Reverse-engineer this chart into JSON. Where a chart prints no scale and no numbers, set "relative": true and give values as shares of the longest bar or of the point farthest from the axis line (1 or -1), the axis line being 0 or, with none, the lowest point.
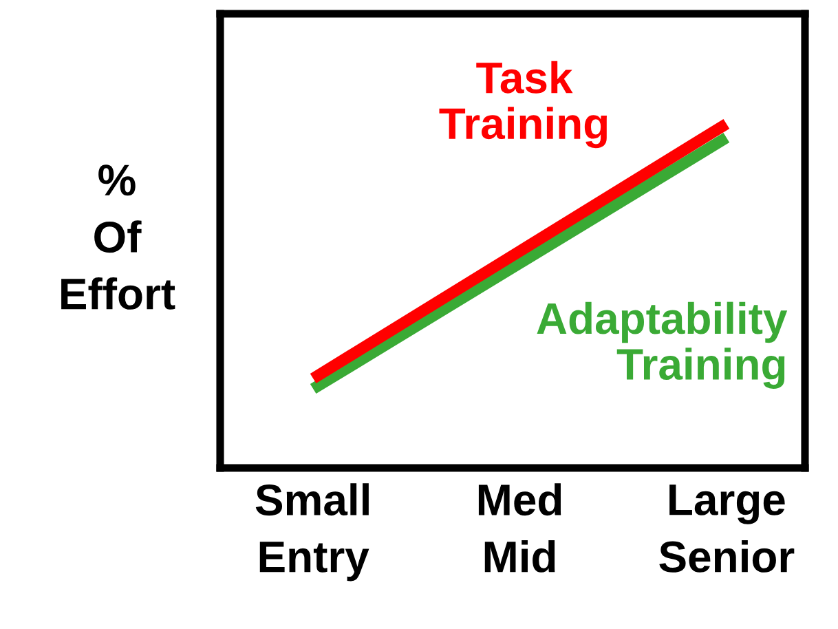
{
  "chart_data": {
    "type": "line",
    "ylabel": "%\nOf\nEffort",
    "relative": true,
    "categories": [
      "Small\nEntry",
      "Med\nMid",
      "Large\nSenior"
    ],
    "series": [
      {
        "name": "Task\nTraining",
        "color": "#ff0000",
        "values": [
          0.26,
          0.63,
          1
        ]
      },
      {
        "name": "Adaptability\nTraining",
        "color": "#3aaa35",
        "values": [
          0.23,
          0.595,
          0.96
        ]
      }
    ],
    "marker": "none",
    "line_style": "solid",
    "grid": false,
    "legend": false
  }
}
